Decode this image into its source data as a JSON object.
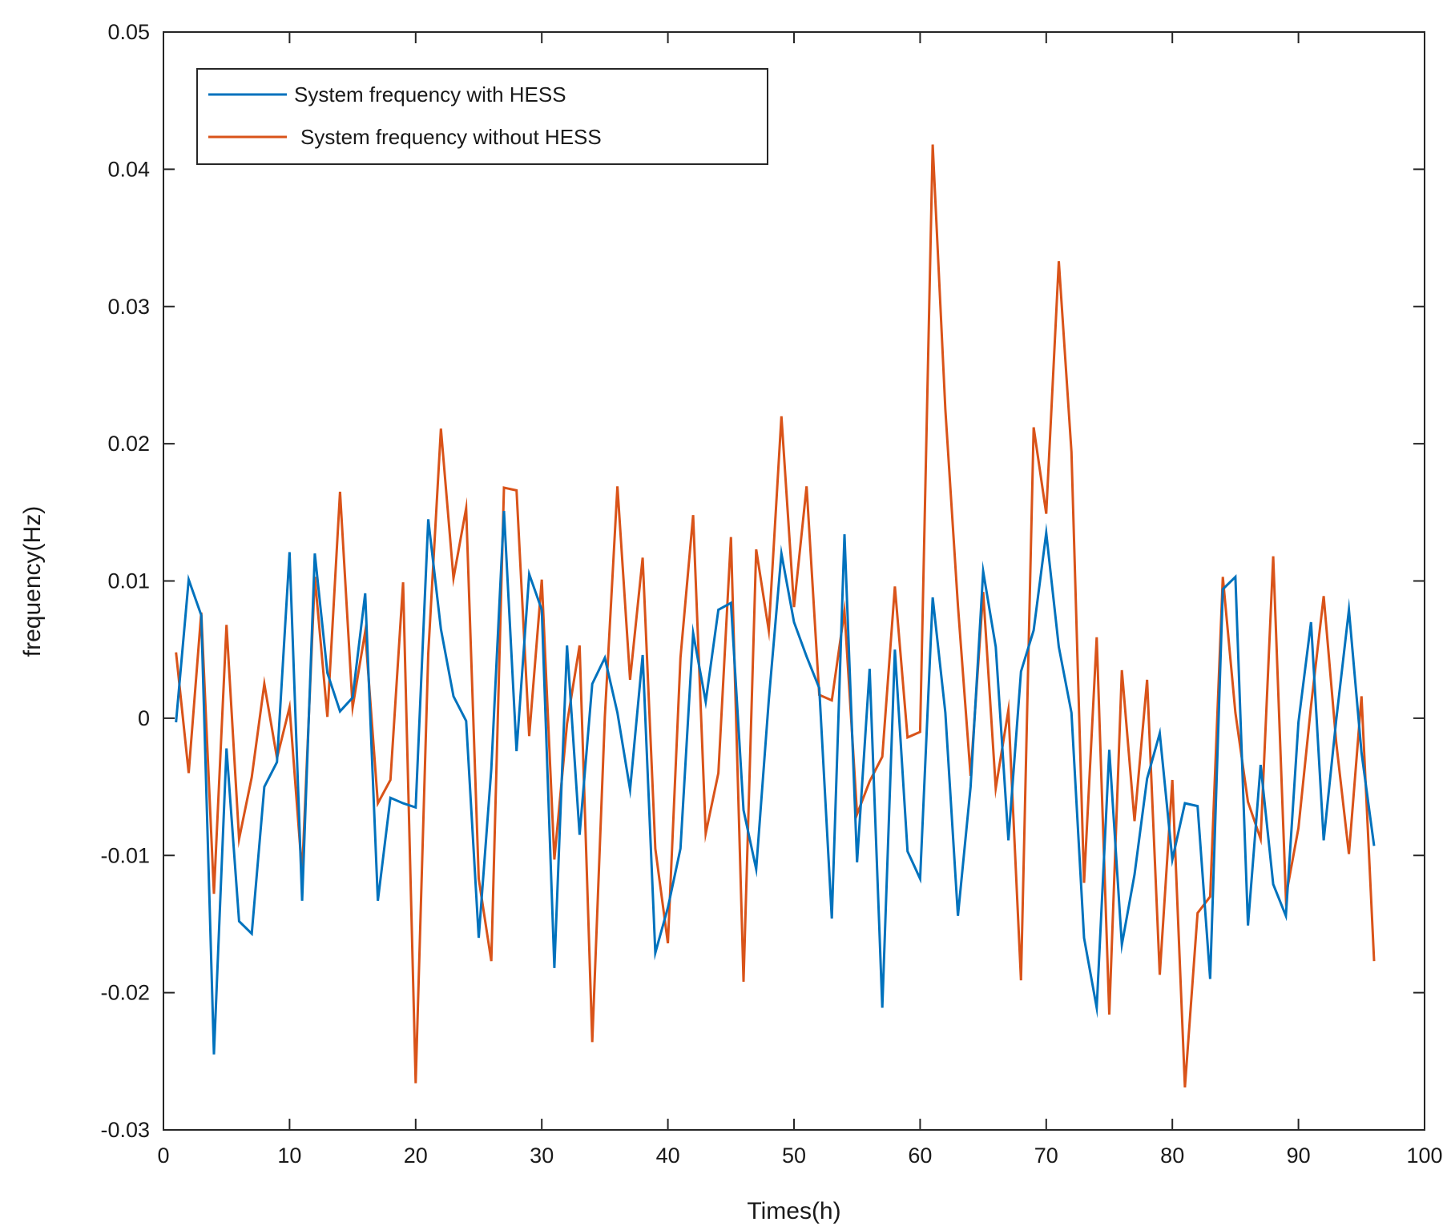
{
  "chart_data": {
    "type": "line",
    "title": "",
    "xlabel": "Times(h)",
    "ylabel": "frequency(Hz)",
    "xlim": [
      0,
      100
    ],
    "ylim": [
      -0.03,
      0.05
    ],
    "xticks": [
      0,
      10,
      20,
      30,
      40,
      50,
      60,
      70,
      80,
      90,
      100
    ],
    "yticks": [
      -0.03,
      -0.02,
      -0.01,
      0,
      0.01,
      0.02,
      0.03,
      0.04,
      0.05
    ],
    "xtick_labels": [
      "0",
      "10",
      "20",
      "30",
      "40",
      "50",
      "60",
      "70",
      "80",
      "90",
      "100"
    ],
    "ytick_labels": [
      "-0.03",
      "-0.02",
      "-0.01",
      "0",
      "0.01",
      "0.02",
      "0.03",
      "0.04",
      "0.05"
    ],
    "grid": false,
    "legend_position": "top-left",
    "x": [
      1,
      2,
      3,
      4,
      5,
      6,
      7,
      8,
      9,
      10,
      11,
      12,
      13,
      14,
      15,
      16,
      17,
      18,
      19,
      20,
      21,
      22,
      23,
      24,
      25,
      26,
      27,
      28,
      29,
      30,
      31,
      32,
      33,
      34,
      35,
      36,
      37,
      38,
      39,
      40,
      41,
      42,
      43,
      44,
      45,
      46,
      47,
      48,
      49,
      50,
      51,
      52,
      53,
      54,
      55,
      56,
      57,
      58,
      59,
      60,
      61,
      62,
      63,
      64,
      65,
      66,
      67,
      68,
      69,
      70,
      71,
      72,
      73,
      74,
      75,
      76,
      77,
      78,
      79,
      80,
      81,
      82,
      83,
      84,
      85,
      86,
      87,
      88,
      89,
      90,
      91,
      92,
      93,
      94,
      95,
      96
    ],
    "series": [
      {
        "name": "System frequency with HESS",
        "color": "#0072BD",
        "values": [
          -0.0003,
          0.0101,
          0.0075,
          -0.0245,
          -0.0022,
          -0.0148,
          -0.0157,
          -0.005,
          -0.0032,
          0.0121,
          -0.0133,
          0.012,
          0.0033,
          0.0005,
          0.0015,
          0.0091,
          -0.0133,
          -0.0058,
          -0.0062,
          -0.0065,
          0.0145,
          0.0065,
          0.0016,
          -0.0002,
          -0.016,
          -0.0037,
          0.0151,
          -0.0024,
          0.0105,
          0.0079,
          -0.0182,
          0.0053,
          -0.0085,
          0.0025,
          0.0044,
          0.0004,
          -0.0052,
          0.0046,
          -0.0171,
          -0.0138,
          -0.0095,
          0.0062,
          0.0012,
          0.0079,
          0.0084,
          -0.0067,
          -0.011,
          0.0013,
          0.012,
          0.007,
          0.0045,
          0.0022,
          -0.0146,
          0.0134,
          -0.0105,
          0.0036,
          -0.0211,
          0.005,
          -0.0097,
          -0.0117,
          0.0088,
          0.0004,
          -0.0144,
          -0.005,
          0.0107,
          0.0052,
          -0.0089,
          0.0034,
          0.0064,
          0.0135,
          0.0052,
          0.0004,
          -0.016,
          -0.0211,
          -0.0023,
          -0.0165,
          -0.0114,
          -0.0044,
          -0.0011,
          -0.0103,
          -0.0062,
          -0.0064,
          -0.019,
          0.0094,
          0.0103,
          -0.0151,
          -0.0034,
          -0.0121,
          -0.0144,
          -0.0003,
          0.007,
          -0.0089,
          -0.0001,
          0.0079,
          -0.0025,
          -0.0093
        ]
      },
      {
        "name": "System frequency without HESS",
        "color": "#D95319",
        "values": [
          0.0048,
          -0.004,
          0.0077,
          -0.0128,
          0.0068,
          -0.0088,
          -0.0043,
          0.0025,
          -0.0029,
          0.0008,
          -0.0113,
          0.0103,
          0.0001,
          0.0165,
          0.0008,
          0.0063,
          -0.0062,
          -0.0045,
          0.0099,
          -0.0266,
          0.0047,
          0.0211,
          0.0102,
          0.0153,
          -0.0117,
          -0.0177,
          0.0168,
          0.0166,
          -0.0013,
          0.0101,
          -0.0103,
          -0.0004,
          0.0053,
          -0.0236,
          0.0001,
          0.0169,
          0.0028,
          0.0117,
          -0.0095,
          -0.0164,
          0.0044,
          0.0148,
          -0.0084,
          -0.004,
          0.0132,
          -0.0192,
          0.0123,
          0.0064,
          0.022,
          0.0081,
          0.0169,
          0.0017,
          0.0013,
          0.0078,
          -0.007,
          -0.0046,
          -0.0028,
          0.0096,
          -0.0014,
          -0.001,
          0.0418,
          0.0225,
          0.0082,
          -0.0042,
          0.0092,
          -0.0051,
          0.0006,
          -0.0191,
          0.0212,
          0.0149,
          0.0333,
          0.0194,
          -0.012,
          0.0059,
          -0.0216,
          0.0035,
          -0.0075,
          0.0028,
          -0.0187,
          -0.0045,
          -0.0269,
          -0.0142,
          -0.013,
          0.0103,
          0.0004,
          -0.0061,
          -0.0088,
          0.0118,
          -0.013,
          -0.008,
          0.0009,
          0.0089,
          -0.0018,
          -0.0099,
          0.0016,
          -0.0177
        ]
      }
    ]
  }
}
